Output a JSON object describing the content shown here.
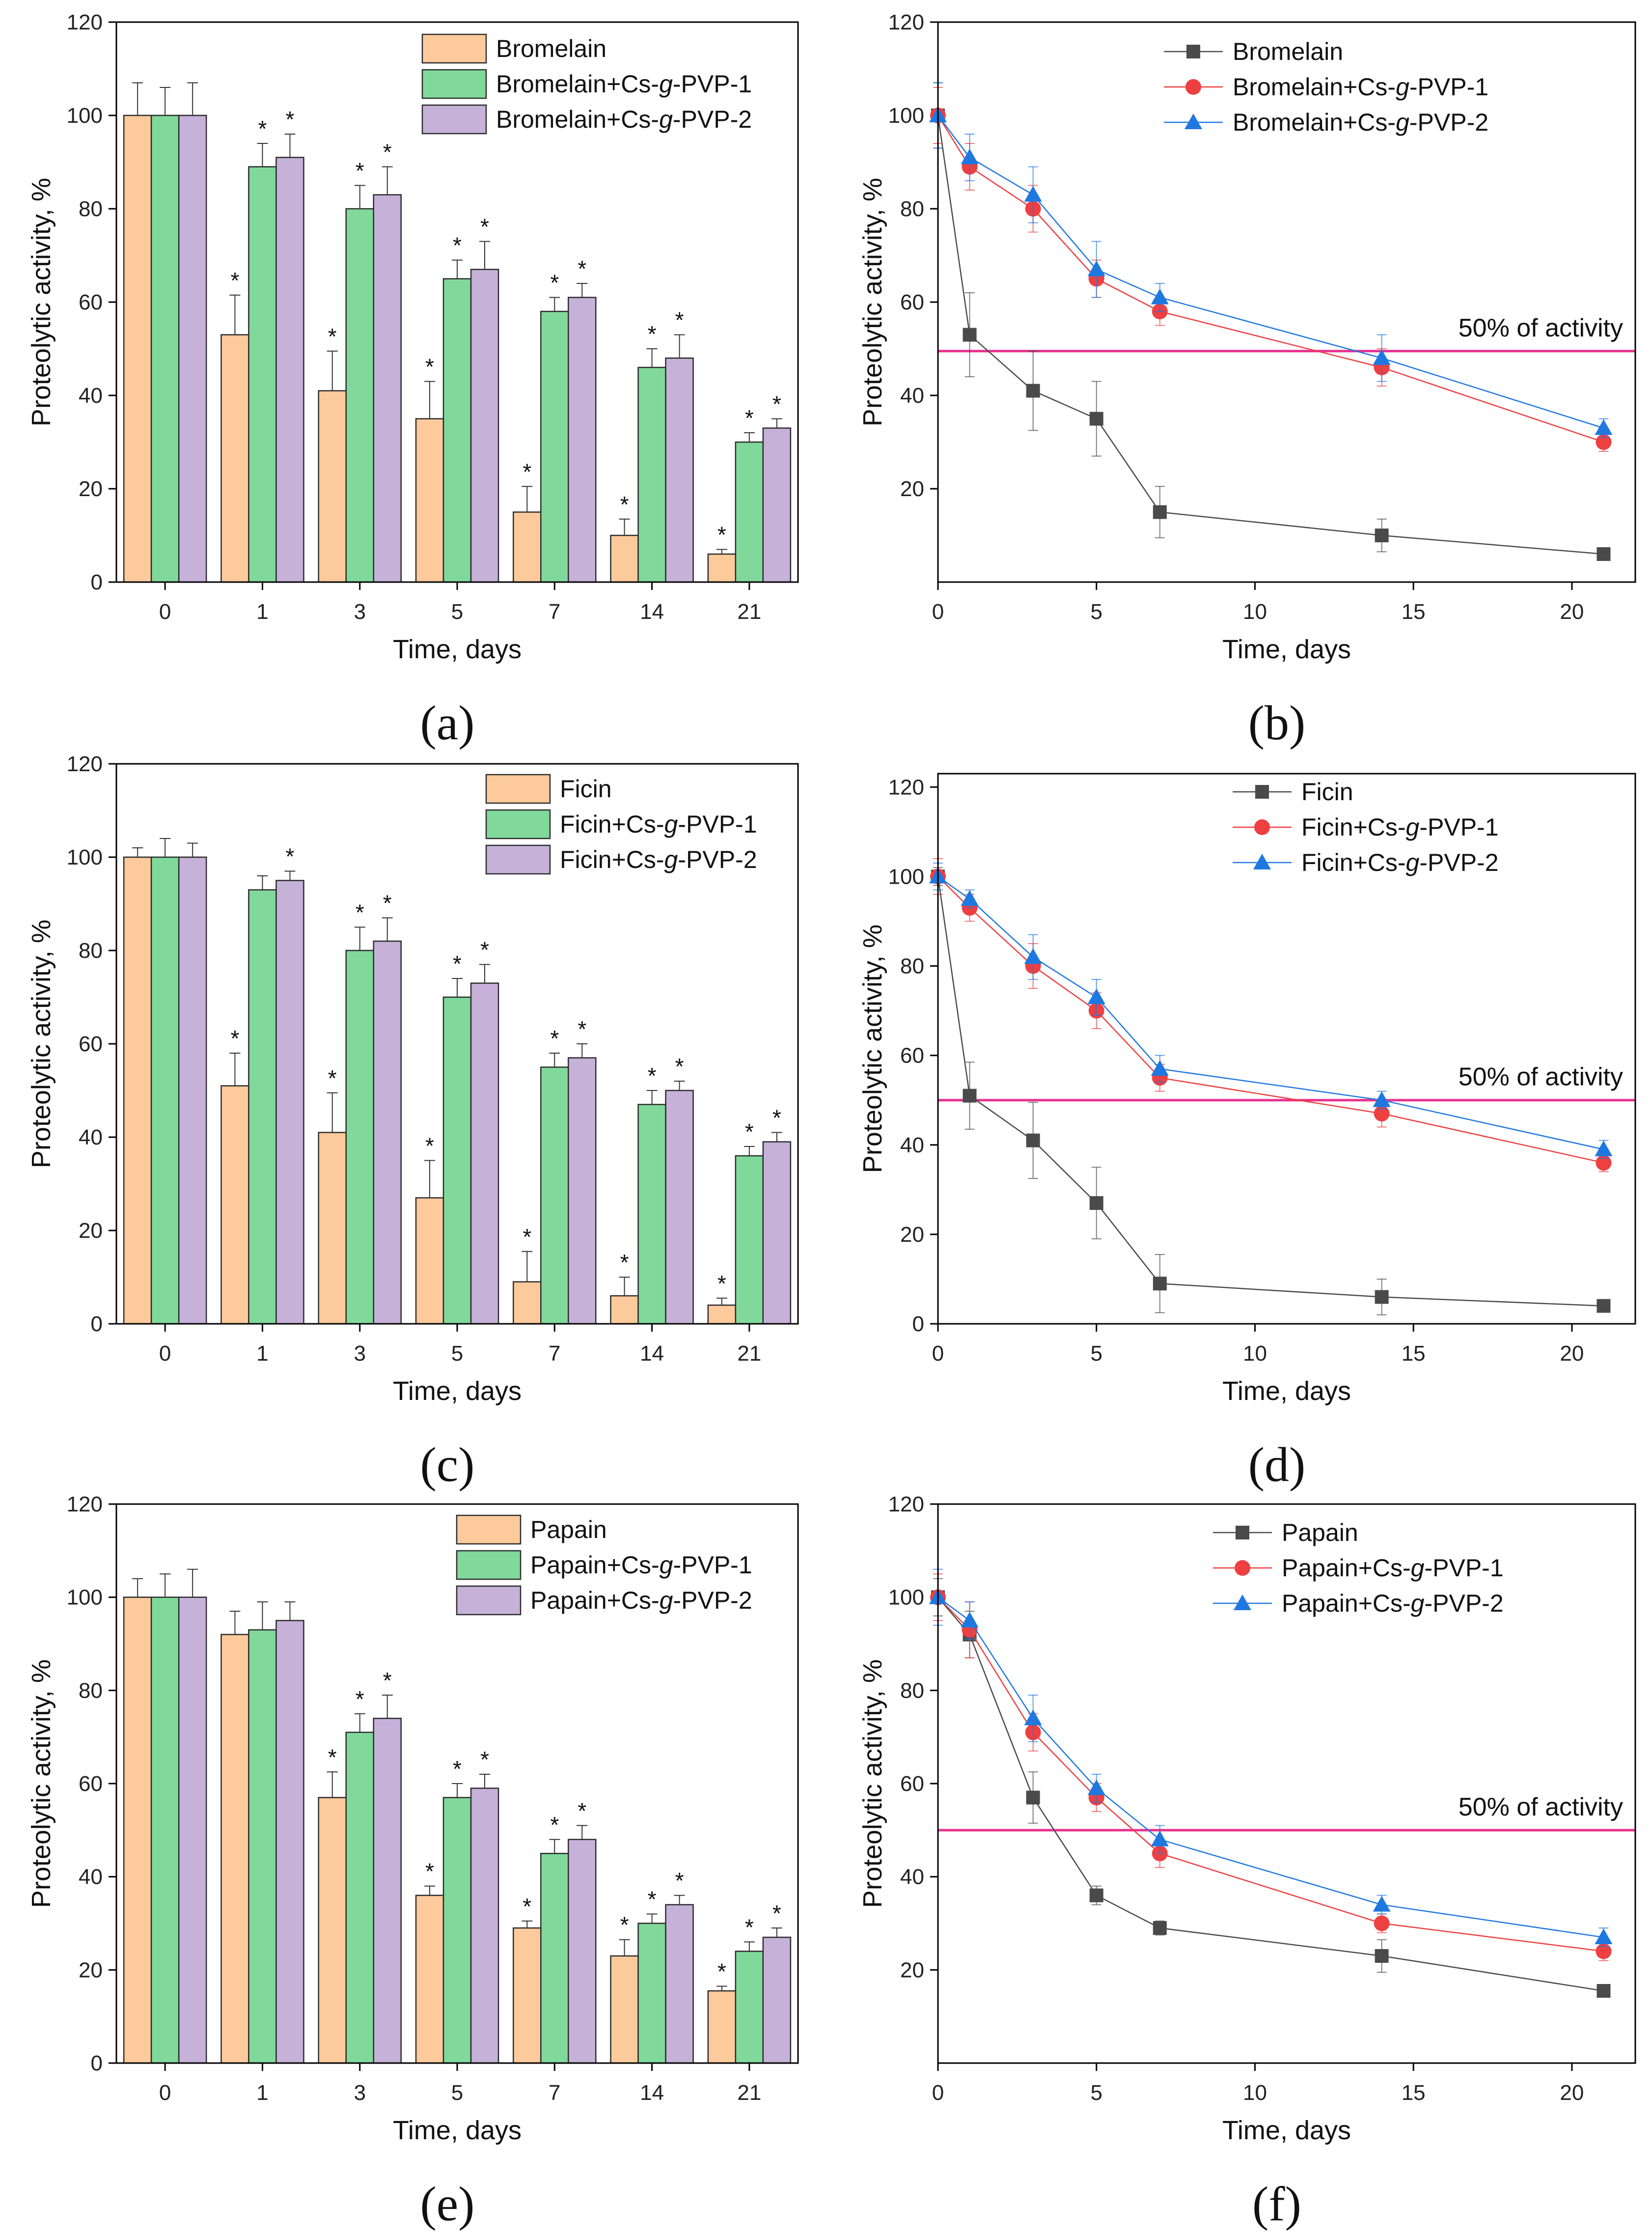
{
  "figure": {
    "colors": {
      "bar_free": "#fdca9c",
      "bar_pvp1": "#80d99b",
      "bar_pvp2": "#c6b1d9",
      "line_free": "#4a4a4a",
      "line_pvp1": "#ee3f41",
      "line_pvp2": "#1f78e0",
      "threshold": "#e8308e",
      "axis": "#000000"
    }
  },
  "chart_data": [
    {
      "id": "a",
      "type": "bar",
      "panel_label": "(a)",
      "xlabel": "Time, days",
      "ylabel": "Proteolytic activity, %",
      "ylim": [
        0,
        120
      ],
      "yticks": [
        0,
        20,
        40,
        60,
        80,
        100,
        120
      ],
      "categories": [
        "0",
        "1",
        "3",
        "5",
        "7",
        "14",
        "21"
      ],
      "series": [
        {
          "name": "Bromelain",
          "values": [
            100,
            53,
            41,
            35,
            15,
            10,
            6
          ],
          "errors": [
            7,
            8.5,
            8.5,
            8,
            5.5,
            3.5,
            1
          ],
          "significant": [
            false,
            true,
            true,
            true,
            true,
            true,
            true
          ]
        },
        {
          "name": "Bromelain+Cs-g-PVP-1",
          "values": [
            100,
            89,
            80,
            65,
            58,
            46,
            30
          ],
          "errors": [
            6,
            5,
            5,
            4,
            3,
            4,
            2
          ],
          "significant": [
            false,
            true,
            true,
            true,
            true,
            true,
            true
          ]
        },
        {
          "name": "Bromelain+Cs-g-PVP-2",
          "values": [
            100,
            91,
            83,
            67,
            61,
            48,
            33
          ],
          "errors": [
            7,
            5,
            6,
            6,
            3,
            5,
            2
          ],
          "significant": [
            false,
            true,
            true,
            true,
            true,
            true,
            true
          ]
        }
      ],
      "significance_marker": "*"
    },
    {
      "id": "b",
      "type": "line",
      "panel_label": "(b)",
      "xlabel": "Time, days",
      "ylabel": "Proteolytic activity, %",
      "xlim": [
        0,
        22
      ],
      "ylim": [
        0,
        120
      ],
      "xticks": [
        0,
        5,
        10,
        15,
        20
      ],
      "yticks": [
        20,
        40,
        60,
        80,
        100,
        120
      ],
      "x": [
        0,
        1,
        3,
        5,
        7,
        14,
        21
      ],
      "series": [
        {
          "name": "Bromelain",
          "marker": "square",
          "values": [
            100,
            53,
            41,
            35,
            15,
            10,
            6
          ],
          "errors": [
            7,
            9,
            8.5,
            8,
            5.5,
            3.5,
            1
          ]
        },
        {
          "name": "Bromelain+Cs-g-PVP-1",
          "marker": "circle",
          "values": [
            100,
            89,
            80,
            65,
            58,
            46,
            30
          ],
          "errors": [
            6,
            5,
            5,
            4,
            3,
            4,
            2
          ]
        },
        {
          "name": "Bromelain+Cs-g-PVP-2",
          "marker": "triangle",
          "values": [
            100,
            91,
            83,
            67,
            61,
            48,
            33
          ],
          "errors": [
            7,
            5,
            6,
            6,
            3,
            5,
            2
          ]
        }
      ],
      "threshold": {
        "value": 49.5,
        "label": "50% of activity"
      }
    },
    {
      "id": "c",
      "type": "bar",
      "panel_label": "(c)",
      "xlabel": "Time, days",
      "ylabel": "Proteolytic activity, %",
      "ylim": [
        0,
        120
      ],
      "yticks": [
        0,
        20,
        40,
        60,
        80,
        100,
        120
      ],
      "categories": [
        "0",
        "1",
        "3",
        "5",
        "7",
        "14",
        "21"
      ],
      "series": [
        {
          "name": "Ficin",
          "values": [
            100,
            51,
            41,
            27,
            9,
            6,
            4
          ],
          "errors": [
            2,
            7,
            8.5,
            8,
            6.5,
            4,
            1.5
          ],
          "significant": [
            false,
            true,
            true,
            true,
            true,
            true,
            true
          ]
        },
        {
          "name": "Ficin+Cs-g-PVP-1",
          "values": [
            100,
            93,
            80,
            70,
            55,
            47,
            36
          ],
          "errors": [
            4,
            3,
            5,
            4,
            3,
            3,
            2
          ],
          "significant": [
            false,
            false,
            true,
            true,
            true,
            true,
            true
          ]
        },
        {
          "name": "Ficin+Cs-g-PVP-2",
          "values": [
            100,
            95,
            82,
            73,
            57,
            50,
            39
          ],
          "errors": [
            3,
            2,
            5,
            4,
            3,
            2,
            2
          ],
          "significant": [
            false,
            true,
            true,
            true,
            true,
            true,
            true
          ]
        }
      ],
      "significance_marker": "*"
    },
    {
      "id": "d",
      "type": "line",
      "panel_label": "(d)",
      "xlabel": "Time, days",
      "ylabel": "Proteolytic activity, %",
      "xlim": [
        0,
        22
      ],
      "ylim": [
        0,
        123
      ],
      "xticks": [
        0,
        5,
        10,
        15,
        20
      ],
      "yticks": [
        0,
        20,
        40,
        60,
        80,
        100,
        120
      ],
      "x": [
        0,
        1,
        3,
        5,
        7,
        14,
        21
      ],
      "series": [
        {
          "name": "Ficin",
          "marker": "square",
          "values": [
            100,
            51,
            41,
            27,
            9,
            6,
            4
          ],
          "errors": [
            2,
            7.5,
            8.5,
            8,
            6.5,
            4,
            1
          ]
        },
        {
          "name": "Ficin+Cs-g-PVP-1",
          "marker": "circle",
          "values": [
            100,
            93,
            80,
            70,
            55,
            47,
            36
          ],
          "errors": [
            4,
            3,
            5,
            4,
            3,
            3,
            2
          ]
        },
        {
          "name": "Ficin+Cs-g-PVP-2",
          "marker": "triangle",
          "values": [
            100,
            95,
            82,
            73,
            57,
            50,
            39
          ],
          "errors": [
            3,
            2,
            5,
            4,
            3,
            2,
            2
          ]
        }
      ],
      "threshold": {
        "value": 50,
        "label": "50% of activity"
      }
    },
    {
      "id": "e",
      "type": "bar",
      "panel_label": "(e)",
      "xlabel": "Time, days",
      "ylabel": "Proteolytic activity, %",
      "ylim": [
        0,
        120
      ],
      "yticks": [
        0,
        20,
        40,
        60,
        80,
        100,
        120
      ],
      "categories": [
        "0",
        "1",
        "3",
        "5",
        "7",
        "14",
        "21"
      ],
      "series": [
        {
          "name": "Papain",
          "values": [
            100,
            92,
            57,
            36,
            29,
            23,
            15.5
          ],
          "errors": [
            4,
            5,
            5.5,
            2,
            1.5,
            3.5,
            1
          ],
          "significant": [
            false,
            false,
            true,
            true,
            true,
            true,
            true
          ]
        },
        {
          "name": "Papain+Cs-g-PVP-1",
          "values": [
            100,
            93,
            71,
            57,
            45,
            30,
            24
          ],
          "errors": [
            5,
            6,
            4,
            3,
            3,
            2,
            2
          ],
          "significant": [
            false,
            false,
            true,
            true,
            true,
            true,
            true
          ]
        },
        {
          "name": "Papain+Cs-g-PVP-2",
          "values": [
            100,
            95,
            74,
            59,
            48,
            34,
            27
          ],
          "errors": [
            6,
            4,
            5,
            3,
            3,
            2,
            2
          ],
          "significant": [
            false,
            false,
            true,
            true,
            true,
            true,
            true
          ]
        }
      ],
      "significance_marker": "*"
    },
    {
      "id": "f",
      "type": "line",
      "panel_label": "(f)",
      "xlabel": "Time, days",
      "ylabel": "Proteolytic activity, %",
      "xlim": [
        0,
        22
      ],
      "ylim": [
        0,
        120
      ],
      "xticks": [
        0,
        5,
        10,
        15,
        20
      ],
      "yticks": [
        20,
        40,
        60,
        80,
        100,
        120
      ],
      "x": [
        0,
        1,
        3,
        5,
        7,
        14,
        21
      ],
      "series": [
        {
          "name": "Papain",
          "marker": "square",
          "values": [
            100,
            92,
            57,
            36,
            29,
            23,
            15.5
          ],
          "errors": [
            4,
            5,
            5.5,
            2,
            1.5,
            3.5,
            1
          ]
        },
        {
          "name": "Papain+Cs-g-PVP-1",
          "marker": "circle",
          "values": [
            100,
            93,
            71,
            57,
            45,
            30,
            24
          ],
          "errors": [
            5,
            6,
            4,
            3,
            3,
            2,
            2
          ]
        },
        {
          "name": "Papain+Cs-g-PVP-2",
          "marker": "triangle",
          "values": [
            100,
            95,
            74,
            59,
            48,
            34,
            27
          ],
          "errors": [
            6,
            4,
            5,
            3,
            3,
            2,
            2
          ]
        }
      ],
      "threshold": {
        "value": 50,
        "label": "50% of activity"
      }
    }
  ]
}
